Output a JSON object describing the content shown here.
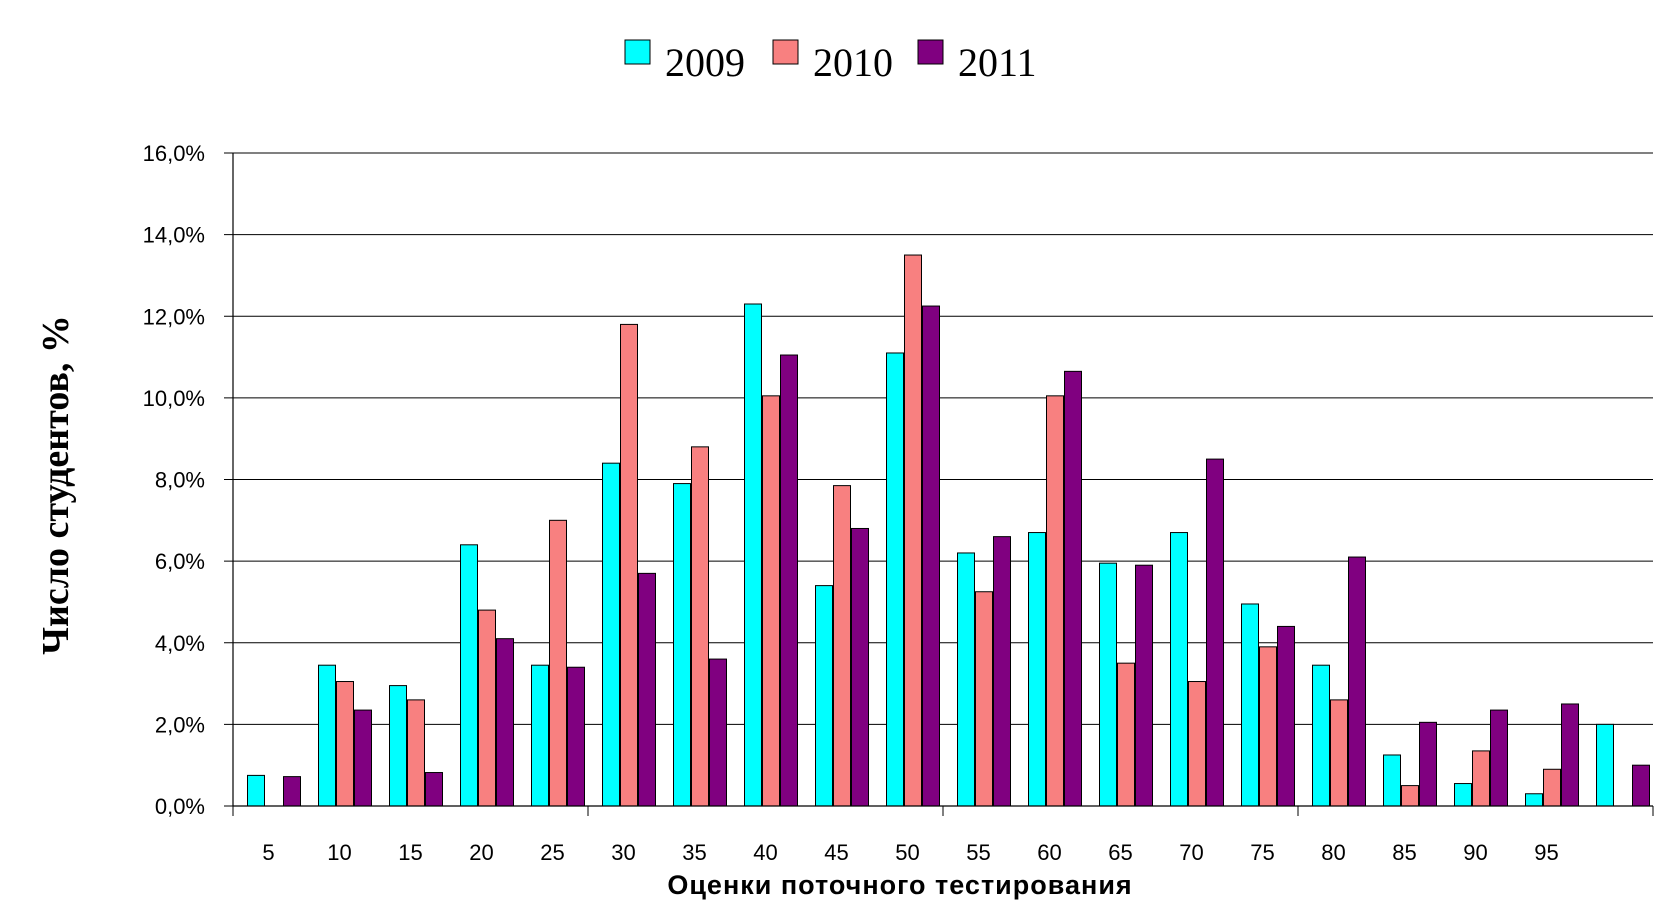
{
  "chart_data": {
    "type": "bar",
    "title": "",
    "xlabel": "Оценки поточного тестирования",
    "ylabel": "Число студентов, %",
    "ylim": [
      0,
      16
    ],
    "y_ticks": [
      "0,0%",
      "2,0%",
      "4,0%",
      "6,0%",
      "8,0%",
      "10,0%",
      "12,0%",
      "14,0%",
      "16,0%"
    ],
    "grid": true,
    "legend_position": "top",
    "categories": [
      "5",
      "10",
      "15",
      "20",
      "25",
      "30",
      "35",
      "40",
      "45",
      "50",
      "55",
      "60",
      "65",
      "70",
      "75",
      "80",
      "85",
      "90",
      "95",
      ""
    ],
    "series": [
      {
        "name": "2009",
        "color": "#00ffff",
        "values": [
          0.75,
          3.45,
          2.95,
          6.4,
          3.45,
          8.4,
          7.9,
          12.3,
          5.4,
          11.1,
          6.2,
          6.7,
          5.95,
          6.7,
          4.95,
          3.45,
          1.25,
          0.55,
          0.3,
          2.0
        ]
      },
      {
        "name": "2010",
        "color": "#f88080",
        "values": [
          0,
          3.05,
          2.6,
          4.8,
          7.0,
          11.8,
          8.8,
          10.05,
          7.85,
          13.5,
          5.25,
          10.05,
          3.5,
          3.05,
          3.9,
          2.6,
          0.5,
          1.35,
          0.9,
          0
        ]
      },
      {
        "name": "2011",
        "color": "#800080",
        "values": [
          0.72,
          2.35,
          0.82,
          4.1,
          3.4,
          5.7,
          3.6,
          11.05,
          6.8,
          12.25,
          6.6,
          10.65,
          5.9,
          8.5,
          4.4,
          6.1,
          2.05,
          2.35,
          2.5,
          1.0
        ]
      }
    ]
  }
}
